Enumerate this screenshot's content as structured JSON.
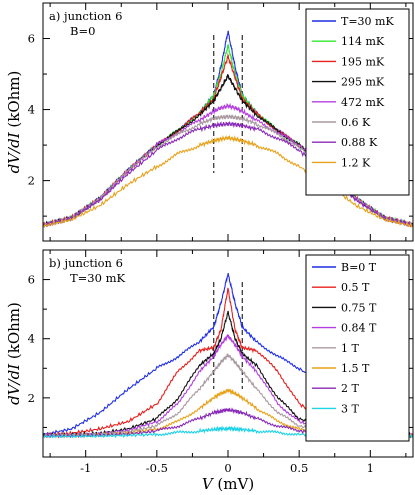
{
  "chart_data": [
    {
      "type": "line",
      "panel_label": "a) junction 6",
      "annotation": "B=0",
      "ylabel": "dV/dI (kOhm)",
      "xlabel": "V (mV)",
      "xlim": [
        -1.3,
        1.3
      ],
      "ylim": [
        0.3,
        7.0
      ],
      "yticks": [
        2,
        4,
        6
      ],
      "xticks": [
        -1,
        -0.5,
        0,
        0.5,
        1
      ],
      "x_tick_labels_shown": false,
      "dashed_lines_x": [
        -0.1,
        0.1
      ],
      "grid": false,
      "legend_position": "top-right",
      "series": [
        {
          "name": "T=30 mK",
          "color": "#1f2ee6",
          "x": [
            -1.3,
            -1.1,
            -0.9,
            -0.7,
            -0.5,
            -0.35,
            -0.2,
            -0.1,
            -0.05,
            0,
            0.05,
            0.1,
            0.2,
            0.35,
            0.5,
            0.7,
            0.9,
            1.1,
            1.3
          ],
          "y": [
            0.75,
            0.95,
            1.5,
            2.3,
            3.0,
            3.4,
            3.9,
            4.4,
            5.2,
            6.2,
            5.2,
            4.4,
            3.9,
            3.4,
            3.0,
            2.3,
            1.5,
            0.95,
            0.75
          ]
        },
        {
          "name": "114 mK",
          "color": "#2ee82e",
          "x": [
            -1.3,
            -1.1,
            -0.9,
            -0.7,
            -0.5,
            -0.35,
            -0.2,
            -0.1,
            -0.05,
            0,
            0.05,
            0.1,
            0.2,
            0.35,
            0.5,
            0.7,
            0.9,
            1.1,
            1.3
          ],
          "y": [
            0.75,
            0.95,
            1.5,
            2.3,
            3.0,
            3.4,
            3.9,
            4.4,
            5.0,
            5.8,
            5.0,
            4.4,
            3.9,
            3.4,
            3.0,
            2.3,
            1.5,
            0.95,
            0.75
          ]
        },
        {
          "name": "195 mK",
          "color": "#e8201e",
          "x": [
            -1.3,
            -1.1,
            -0.9,
            -0.7,
            -0.5,
            -0.35,
            -0.2,
            -0.1,
            -0.05,
            0,
            0.05,
            0.1,
            0.2,
            0.35,
            0.5,
            0.7,
            0.9,
            1.1,
            1.3
          ],
          "y": [
            0.75,
            0.95,
            1.5,
            2.3,
            3.0,
            3.4,
            3.9,
            4.3,
            4.9,
            5.5,
            4.9,
            4.3,
            3.9,
            3.4,
            3.0,
            2.3,
            1.5,
            0.95,
            0.75
          ]
        },
        {
          "name": "295 mK",
          "color": "#111111",
          "x": [
            -1.3,
            -1.1,
            -0.9,
            -0.7,
            -0.5,
            -0.35,
            -0.2,
            -0.1,
            -0.05,
            0,
            0.05,
            0.1,
            0.2,
            0.35,
            0.5,
            0.7,
            0.9,
            1.1,
            1.3
          ],
          "y": [
            0.75,
            0.95,
            1.5,
            2.3,
            3.0,
            3.4,
            3.85,
            4.25,
            4.6,
            4.95,
            4.6,
            4.25,
            3.85,
            3.4,
            3.0,
            2.3,
            1.5,
            0.95,
            0.75
          ]
        },
        {
          "name": "472 mK",
          "color": "#b43fe0",
          "x": [
            -1.3,
            -1.1,
            -0.9,
            -0.7,
            -0.5,
            -0.35,
            -0.2,
            -0.1,
            -0.05,
            0,
            0.05,
            0.1,
            0.2,
            0.35,
            0.5,
            0.7,
            0.9,
            1.1,
            1.3
          ],
          "y": [
            0.75,
            0.95,
            1.5,
            2.3,
            3.0,
            3.35,
            3.7,
            3.95,
            4.05,
            4.1,
            4.05,
            3.95,
            3.7,
            3.35,
            3.0,
            2.3,
            1.5,
            0.95,
            0.75
          ]
        },
        {
          "name": "0.6 K",
          "color": "#a99aa0",
          "x": [
            -1.3,
            -1.1,
            -0.9,
            -0.7,
            -0.5,
            -0.35,
            -0.2,
            -0.1,
            -0.05,
            0,
            0.05,
            0.1,
            0.2,
            0.35,
            0.5,
            0.7,
            0.9,
            1.1,
            1.3
          ],
          "y": [
            0.75,
            0.95,
            1.5,
            2.3,
            2.95,
            3.3,
            3.6,
            3.75,
            3.78,
            3.8,
            3.78,
            3.75,
            3.6,
            3.3,
            2.95,
            2.3,
            1.5,
            0.95,
            0.75
          ]
        },
        {
          "name": "0.88 K",
          "color": "#8a2ab8",
          "x": [
            -1.3,
            -1.1,
            -0.9,
            -0.7,
            -0.5,
            -0.35,
            -0.2,
            -0.1,
            -0.05,
            0,
            0.05,
            0.1,
            0.2,
            0.35,
            0.5,
            0.7,
            0.9,
            1.1,
            1.3
          ],
          "y": [
            0.75,
            0.95,
            1.45,
            2.2,
            2.85,
            3.2,
            3.45,
            3.55,
            3.58,
            3.6,
            3.58,
            3.55,
            3.45,
            3.2,
            2.85,
            2.2,
            1.45,
            0.95,
            0.75
          ]
        },
        {
          "name": "1.2 K",
          "color": "#e8a21a",
          "x": [
            -1.3,
            -1.1,
            -0.9,
            -0.7,
            -0.5,
            -0.35,
            -0.2,
            -0.1,
            -0.05,
            0,
            0.05,
            0.1,
            0.2,
            0.35,
            0.5,
            0.7,
            0.9,
            1.1,
            1.3
          ],
          "y": [
            0.72,
            0.9,
            1.3,
            1.9,
            2.4,
            2.75,
            3.0,
            3.12,
            3.17,
            3.2,
            3.17,
            3.12,
            3.0,
            2.75,
            2.4,
            1.9,
            1.3,
            0.9,
            0.72
          ]
        }
      ]
    },
    {
      "type": "line",
      "panel_label": "b) junction 6",
      "annotation": "T=30 mK",
      "ylabel": "dV/dI (kOhm)",
      "xlabel": "V (mV)",
      "xlim": [
        -1.3,
        1.3
      ],
      "ylim": [
        0.0,
        7.0
      ],
      "yticks": [
        2,
        4,
        6
      ],
      "xticks": [
        -1,
        -0.5,
        0,
        0.5,
        1
      ],
      "x_tick_labels_shown": true,
      "dashed_lines_x": [
        -0.1,
        0.1
      ],
      "grid": false,
      "legend_position": "top-right",
      "series": [
        {
          "name": "B=0 T",
          "color": "#1f2ee6",
          "x": [
            -1.3,
            -1.1,
            -0.9,
            -0.7,
            -0.5,
            -0.35,
            -0.2,
            -0.1,
            -0.05,
            0,
            0.05,
            0.1,
            0.2,
            0.35,
            0.5,
            0.7,
            0.9,
            1.1,
            1.3
          ],
          "y": [
            0.75,
            0.95,
            1.5,
            2.3,
            3.0,
            3.4,
            3.9,
            4.4,
            5.2,
            6.2,
            5.2,
            4.4,
            3.9,
            3.4,
            3.0,
            2.3,
            1.5,
            0.95,
            0.75
          ]
        },
        {
          "name": "0.5 T",
          "color": "#e8201e",
          "x": [
            -1.3,
            -1.1,
            -0.9,
            -0.7,
            -0.5,
            -0.35,
            -0.2,
            -0.1,
            -0.05,
            0,
            0.05,
            0.1,
            0.2,
            0.35,
            0.5,
            0.7,
            0.9,
            1.1,
            1.3
          ],
          "y": [
            0.75,
            0.8,
            0.95,
            1.2,
            1.8,
            2.9,
            3.6,
            3.7,
            4.3,
            5.7,
            4.3,
            3.7,
            3.6,
            2.9,
            1.8,
            1.2,
            0.95,
            0.8,
            0.75
          ]
        },
        {
          "name": "0.75 T",
          "color": "#111111",
          "x": [
            -1.3,
            -1.1,
            -0.9,
            -0.7,
            -0.5,
            -0.35,
            -0.2,
            -0.1,
            -0.05,
            0,
            0.05,
            0.1,
            0.2,
            0.35,
            0.5,
            0.7,
            0.9,
            1.1,
            1.3
          ],
          "y": [
            0.72,
            0.75,
            0.8,
            0.95,
            1.3,
            2.0,
            3.1,
            3.5,
            4.0,
            4.9,
            4.0,
            3.5,
            3.1,
            2.0,
            1.3,
            0.95,
            0.8,
            0.75,
            0.72
          ]
        },
        {
          "name": "0.84 T",
          "color": "#b43fe0",
          "x": [
            -1.3,
            -1.1,
            -0.9,
            -0.7,
            -0.5,
            -0.35,
            -0.2,
            -0.1,
            -0.05,
            0,
            0.05,
            0.1,
            0.2,
            0.35,
            0.5,
            0.7,
            0.9,
            1.1,
            1.3
          ],
          "y": [
            0.72,
            0.74,
            0.78,
            0.9,
            1.2,
            1.8,
            2.9,
            3.4,
            3.8,
            4.1,
            3.8,
            3.4,
            2.9,
            1.8,
            1.2,
            0.9,
            0.78,
            0.74,
            0.72
          ]
        },
        {
          "name": "1 T",
          "color": "#a99aa0",
          "x": [
            -1.3,
            -1.1,
            -0.9,
            -0.7,
            -0.5,
            -0.35,
            -0.2,
            -0.1,
            -0.05,
            0,
            0.05,
            0.1,
            0.2,
            0.35,
            0.5,
            0.7,
            0.9,
            1.1,
            1.3
          ],
          "y": [
            0.72,
            0.74,
            0.77,
            0.85,
            1.05,
            1.5,
            2.3,
            2.9,
            3.2,
            3.45,
            3.2,
            2.9,
            2.3,
            1.5,
            1.05,
            0.85,
            0.77,
            0.74,
            0.72
          ]
        },
        {
          "name": "1.5 T",
          "color": "#e8a21a",
          "x": [
            -1.3,
            -1.1,
            -0.9,
            -0.7,
            -0.5,
            -0.35,
            -0.2,
            -0.1,
            -0.05,
            0,
            0.05,
            0.1,
            0.2,
            0.35,
            0.5,
            0.7,
            0.9,
            1.1,
            1.3
          ],
          "y": [
            0.72,
            0.73,
            0.75,
            0.8,
            0.95,
            1.2,
            1.65,
            2.0,
            2.15,
            2.25,
            2.15,
            2.0,
            1.65,
            1.2,
            0.95,
            0.8,
            0.75,
            0.73,
            0.72
          ]
        },
        {
          "name": "2 T",
          "color": "#8a2ab8",
          "x": [
            -1.3,
            -1.1,
            -0.9,
            -0.7,
            -0.5,
            -0.35,
            -0.2,
            -0.1,
            -0.05,
            0,
            0.05,
            0.1,
            0.2,
            0.35,
            0.5,
            0.7,
            0.9,
            1.1,
            1.3
          ],
          "y": [
            0.72,
            0.72,
            0.74,
            0.78,
            0.88,
            1.05,
            1.3,
            1.5,
            1.55,
            1.6,
            1.55,
            1.5,
            1.3,
            1.05,
            0.88,
            0.78,
            0.74,
            0.72,
            0.72
          ]
        },
        {
          "name": "3 T",
          "color": "#1fd3e6",
          "x": [
            -1.3,
            -1.1,
            -0.9,
            -0.7,
            -0.5,
            -0.35,
            -0.2,
            -0.1,
            -0.05,
            0,
            0.05,
            0.1,
            0.2,
            0.35,
            0.5,
            0.7,
            0.9,
            1.1,
            1.3
          ],
          "y": [
            0.7,
            0.7,
            0.71,
            0.73,
            0.77,
            0.82,
            0.88,
            0.93,
            0.95,
            0.96,
            0.95,
            0.93,
            0.88,
            0.82,
            0.77,
            0.73,
            0.71,
            0.7,
            0.7
          ]
        }
      ]
    }
  ]
}
